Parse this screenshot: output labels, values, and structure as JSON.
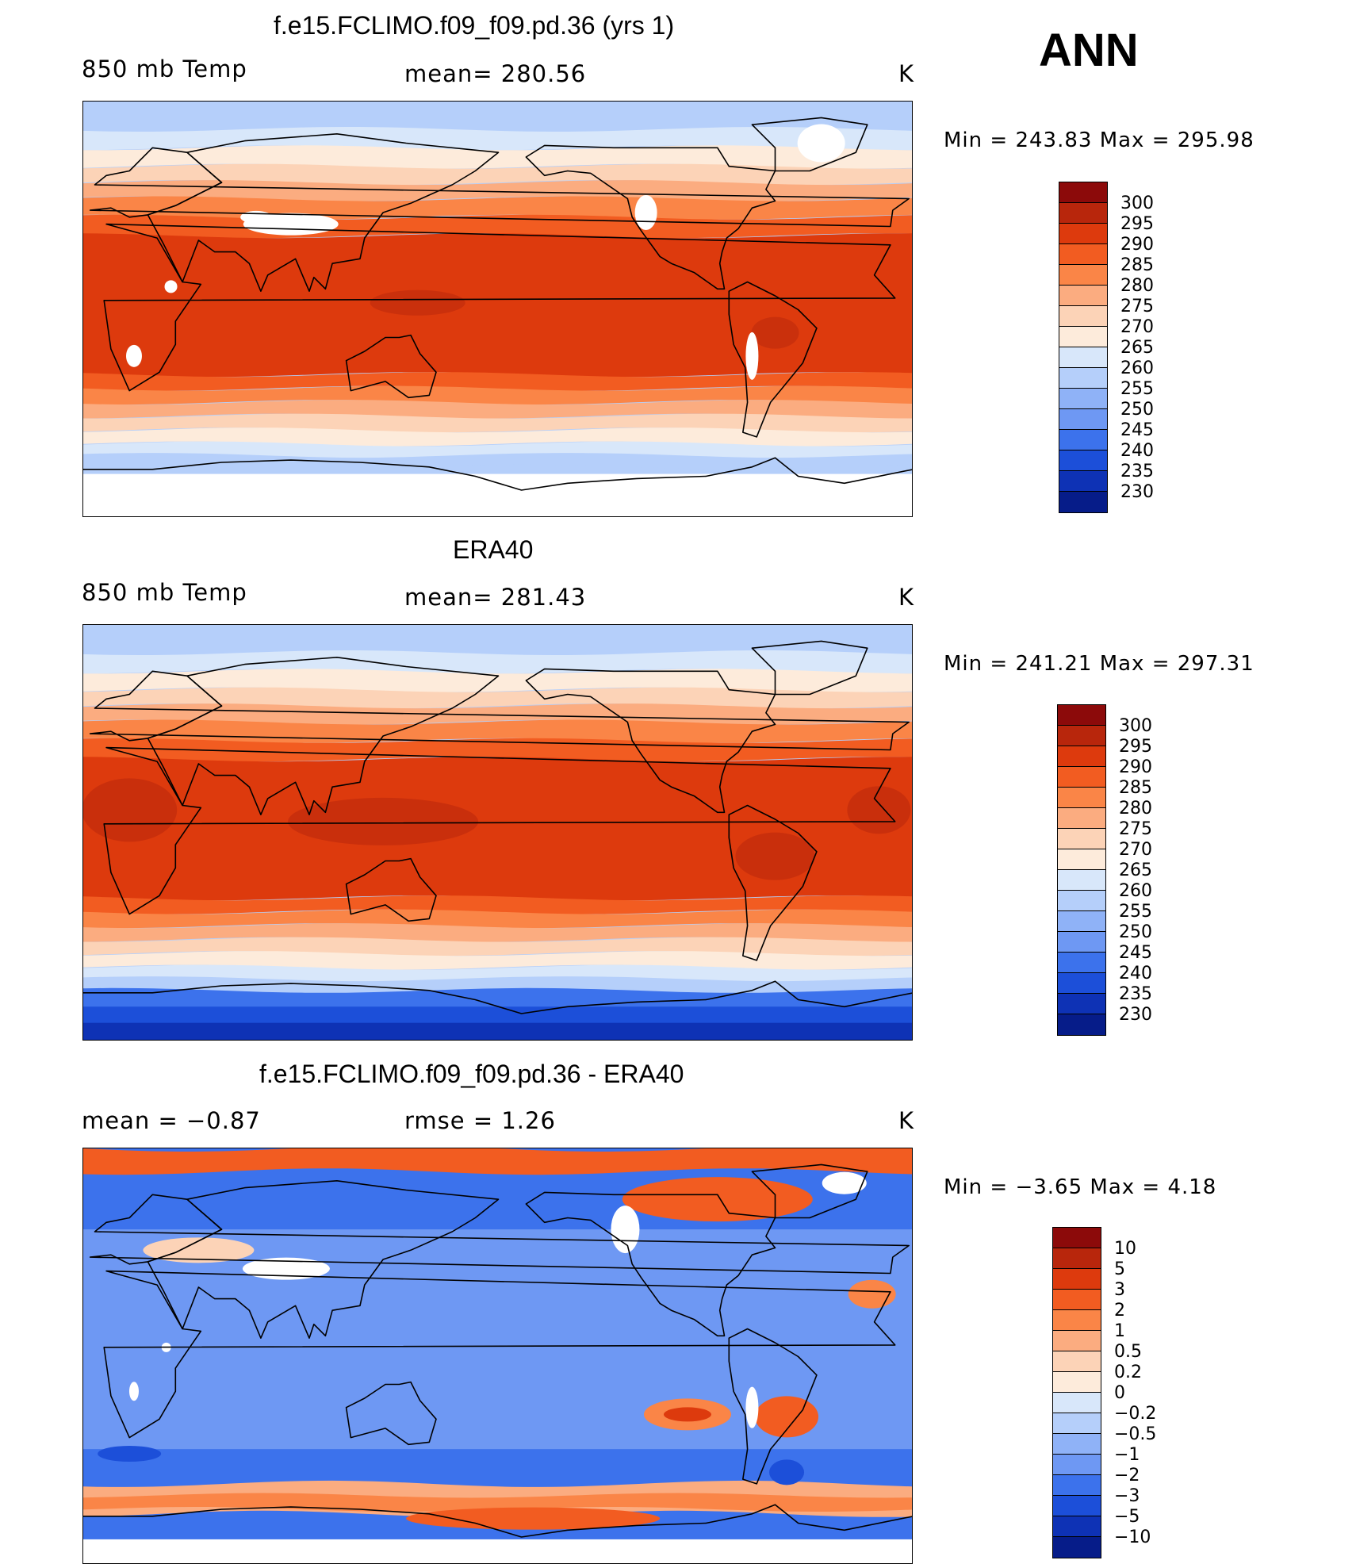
{
  "season": "ANN",
  "units": "K",
  "palette": {
    "temp": [
      "#8c0a0a",
      "#b8260c",
      "#dd3a0d",
      "#f25c21",
      "#fa8547",
      "#fbac80",
      "#fcd3b7",
      "#fdebdb",
      "#d8e7fa",
      "#b5cffa",
      "#8fb2f7",
      "#6e98f3",
      "#3c72ec",
      "#1c4fd9",
      "#0e32b5",
      "#061c89"
    ],
    "diff": [
      "#8c0a0a",
      "#b8260c",
      "#dd3a0d",
      "#f25c21",
      "#fa8547",
      "#fbac80",
      "#fcd3b7",
      "#fdebdb",
      "#d8e7fa",
      "#b5cffa",
      "#8fb2f7",
      "#6e98f3",
      "#3c72ec",
      "#1c4fd9",
      "#0e32b5",
      "#061c89"
    ],
    "ocean_land_mask": "#ffffff"
  },
  "panels": [
    {
      "title": "f.e15.FCLIMO.f09_f09.pd.36 (yrs 1)",
      "left_label": "850 mb Temp",
      "center_label": "mean=  280.56",
      "right_label": "K",
      "minmax": "Min  =  243.83  Max  =  295.98",
      "kind": "model"
    },
    {
      "title": "ERA40",
      "left_label": "850 mb Temp",
      "center_label": "mean=  281.43",
      "right_label": "K",
      "minmax": "Min  =  241.21  Max  =  297.31",
      "kind": "obs"
    },
    {
      "title": "f.e15.FCLIMO.f09_f09.pd.36 - ERA40",
      "left_label": "mean  =    −0.87",
      "center_label": "rmse  =     1.26",
      "right_label": "K",
      "minmax": "Min  =    −3.65  Max  =      4.18",
      "kind": "diff"
    }
  ],
  "colorbars": {
    "temp": [
      "300",
      "295",
      "290",
      "285",
      "280",
      "275",
      "270",
      "265",
      "260",
      "255",
      "250",
      "245",
      "240",
      "235",
      "230"
    ],
    "diff": [
      "10",
      "5",
      "3",
      "2",
      "1",
      "0.5",
      "0.2",
      "0",
      "−0.2",
      "−0.5",
      "−1",
      "−2",
      "−3",
      "−5",
      "−10"
    ]
  }
}
